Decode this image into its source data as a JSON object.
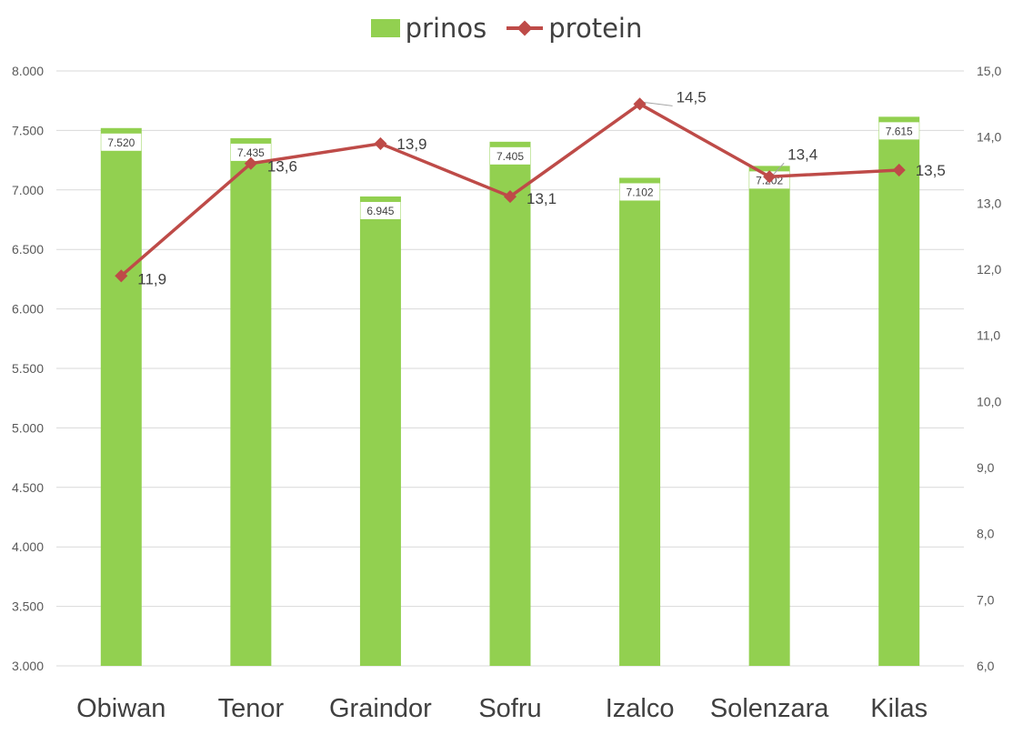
{
  "chart_data": {
    "type": "bar-line-combo",
    "categories": [
      "Obiwan",
      "Tenor",
      "Graindor",
      "Sofru",
      "Izalco",
      "Solenzara",
      "Kilas"
    ],
    "series": [
      {
        "name": "prinos",
        "type": "bar",
        "axis": "left",
        "values": [
          7520,
          7435,
          6945,
          7405,
          7102,
          7202,
          7615
        ],
        "labels": [
          "7.520",
          "7.435",
          "6.945",
          "7.405",
          "7.102",
          "7.202",
          "7.615"
        ]
      },
      {
        "name": "protein",
        "type": "line",
        "axis": "right",
        "values": [
          11.9,
          13.6,
          13.9,
          13.1,
          14.5,
          13.4,
          13.5
        ],
        "labels": [
          "11,9",
          "13,6",
          "13,9",
          "13,1",
          "14,5",
          "13,4",
          "13,5"
        ]
      }
    ],
    "y_left": {
      "range": [
        3000,
        8000
      ],
      "ticks": [
        "3.000",
        "3.500",
        "4.000",
        "4.500",
        "5.000",
        "5.500",
        "6.000",
        "6.500",
        "7.000",
        "7.500",
        "8.000"
      ]
    },
    "y_right": {
      "range": [
        6.0,
        15.0
      ],
      "ticks": [
        "6,0",
        "7,0",
        "8,0",
        "9,0",
        "10,0",
        "11,0",
        "12,0",
        "13,0",
        "14,0",
        "15,0"
      ]
    },
    "grid": true,
    "legend_position": "top-center",
    "colors": {
      "bar": "#92d050",
      "line": "#be4b48",
      "grid": "#d9d9d9",
      "axis_text": "#595959",
      "category_text": "#404040"
    }
  }
}
